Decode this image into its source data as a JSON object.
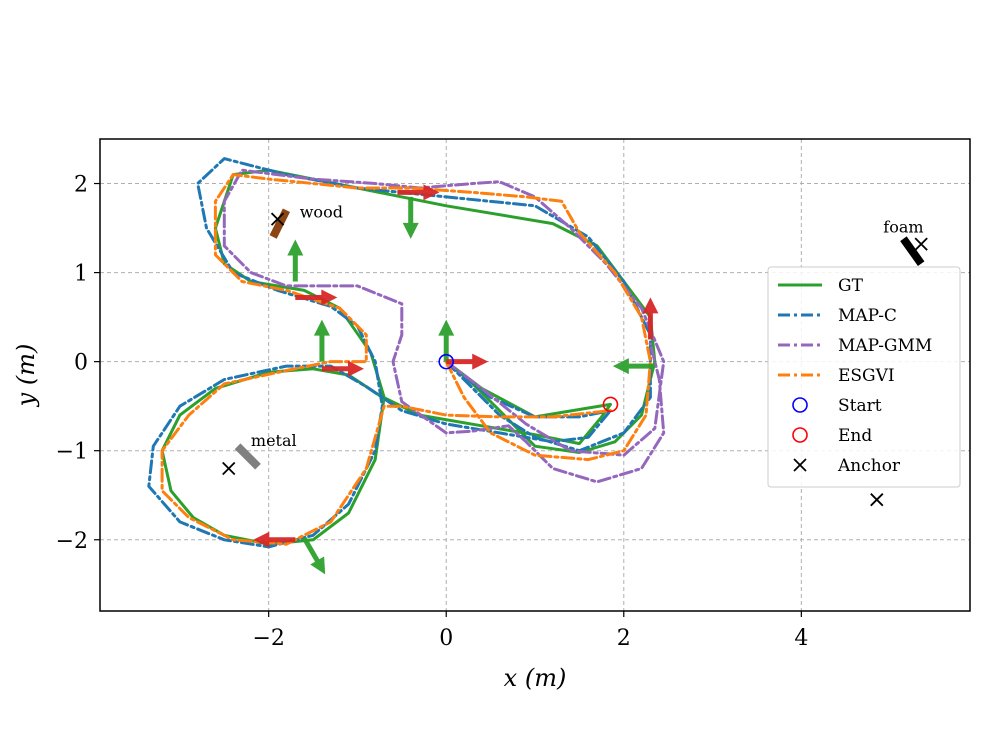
{
  "chart_data": {
    "type": "line",
    "title": "",
    "xlabel": "x (m)",
    "ylabel": "y (m)",
    "xlim": [
      -3.9,
      5.9
    ],
    "ylim": [
      -2.8,
      2.5
    ],
    "xticks": [
      -2,
      0,
      2,
      4
    ],
    "xtick_labels": [
      "−2",
      "0",
      "2",
      "4"
    ],
    "yticks": [
      -2,
      -1,
      0,
      1,
      2
    ],
    "ytick_labels": [
      "−2",
      "−1",
      "0",
      "1",
      "2"
    ],
    "grid": true,
    "legend_position": "right",
    "legend": [
      {
        "label": "GT",
        "color": "#2ca02c",
        "style": "solid"
      },
      {
        "label": "MAP-C",
        "color": "#1f77b4",
        "style": "dashdot"
      },
      {
        "label": "MAP-GMM",
        "color": "#9467bd",
        "style": "dashdot"
      },
      {
        "label": "ESGVI",
        "color": "#ff7f0e",
        "style": "dashdot"
      },
      {
        "label": "Start",
        "color": "#0000ff",
        "style": "circle"
      },
      {
        "label": "End",
        "color": "#ff0000",
        "style": "circle"
      },
      {
        "label": "Anchor",
        "color": "#000000",
        "style": "x"
      }
    ],
    "series": [
      {
        "name": "GT",
        "color": "#2ca02c",
        "dash": "",
        "points": [
          [
            0,
            0
          ],
          [
            0.4,
            -0.3
          ],
          [
            1.0,
            -0.62
          ],
          [
            1.6,
            -0.52
          ],
          [
            1.85,
            -0.48
          ],
          [
            1.75,
            -0.62
          ],
          [
            1.5,
            -0.92
          ],
          [
            1.0,
            -0.82
          ],
          [
            0.4,
            -0.72
          ],
          [
            -0.3,
            -0.6
          ],
          [
            -0.75,
            -0.38
          ],
          [
            -1.1,
            -0.15
          ],
          [
            -1.5,
            -0.08
          ],
          [
            -2.0,
            -0.12
          ],
          [
            -2.6,
            -0.3
          ],
          [
            -3.0,
            -0.6
          ],
          [
            -3.2,
            -1.0
          ],
          [
            -3.1,
            -1.45
          ],
          [
            -2.85,
            -1.75
          ],
          [
            -2.5,
            -1.95
          ],
          [
            -2.0,
            -2.05
          ],
          [
            -1.5,
            -2.0
          ],
          [
            -1.1,
            -1.7
          ],
          [
            -0.8,
            -1.1
          ],
          [
            -0.7,
            -0.4
          ],
          [
            -0.85,
            0.1
          ],
          [
            -1.2,
            0.6
          ],
          [
            -1.6,
            0.8
          ],
          [
            -2.2,
            0.9
          ],
          [
            -2.5,
            1.1
          ],
          [
            -2.6,
            1.5
          ],
          [
            -2.4,
            2.1
          ],
          [
            -2.0,
            2.15
          ],
          [
            -1.0,
            1.95
          ],
          [
            0,
            1.75
          ],
          [
            1.2,
            1.55
          ],
          [
            1.7,
            1.3
          ],
          [
            2.0,
            0.9
          ],
          [
            2.3,
            0.5
          ],
          [
            2.35,
            0
          ],
          [
            2.2,
            -0.6
          ],
          [
            1.9,
            -0.9
          ],
          [
            1.5,
            -1.02
          ],
          [
            1.0,
            -0.95
          ],
          [
            0.6,
            -0.55
          ],
          [
            0.3,
            -0.25
          ],
          [
            0,
            0
          ]
        ]
      },
      {
        "name": "MAP-C",
        "color": "#1f77b4",
        "dash": "12,4,3,4",
        "points": [
          [
            0,
            0
          ],
          [
            0.5,
            -0.4
          ],
          [
            1.0,
            -0.62
          ],
          [
            1.5,
            -0.62
          ],
          [
            1.85,
            -0.55
          ],
          [
            1.6,
            -0.85
          ],
          [
            1.2,
            -0.9
          ],
          [
            0.6,
            -0.8
          ],
          [
            0,
            -0.7
          ],
          [
            -0.5,
            -0.55
          ],
          [
            -0.9,
            -0.28
          ],
          [
            -1.3,
            -0.05
          ],
          [
            -1.8,
            -0.05
          ],
          [
            -2.5,
            -0.2
          ],
          [
            -3.0,
            -0.5
          ],
          [
            -3.3,
            -0.95
          ],
          [
            -3.35,
            -1.4
          ],
          [
            -3.0,
            -1.8
          ],
          [
            -2.5,
            -2.0
          ],
          [
            -2.0,
            -2.08
          ],
          [
            -1.5,
            -1.95
          ],
          [
            -1.1,
            -1.6
          ],
          [
            -0.8,
            -1.0
          ],
          [
            -0.72,
            -0.5
          ],
          [
            -0.8,
            0
          ],
          [
            -1.0,
            0.4
          ],
          [
            -1.3,
            0.62
          ],
          [
            -1.9,
            0.8
          ],
          [
            -2.4,
            1.0
          ],
          [
            -2.7,
            1.5
          ],
          [
            -2.8,
            2.0
          ],
          [
            -2.5,
            2.28
          ],
          [
            -1.8,
            2.1
          ],
          [
            -1.0,
            1.95
          ],
          [
            0,
            1.85
          ],
          [
            1.0,
            1.75
          ],
          [
            1.6,
            1.4
          ],
          [
            2.0,
            0.9
          ],
          [
            2.3,
            0.3
          ],
          [
            2.3,
            -0.4
          ],
          [
            2.0,
            -0.8
          ],
          [
            1.5,
            -1.0
          ],
          [
            1.0,
            -0.85
          ],
          [
            0.6,
            -0.6
          ],
          [
            0,
            0
          ]
        ]
      },
      {
        "name": "MAP-GMM",
        "color": "#9467bd",
        "dash": "12,4,3,4",
        "points": [
          [
            0,
            0
          ],
          [
            0.4,
            -0.3
          ],
          [
            0.9,
            -0.7
          ],
          [
            1.4,
            -1.0
          ],
          [
            2.0,
            -1.05
          ],
          [
            2.35,
            -0.75
          ],
          [
            2.45,
            0
          ],
          [
            2.2,
            0.6
          ],
          [
            1.8,
            1.1
          ],
          [
            1.4,
            1.5
          ],
          [
            1.0,
            1.85
          ],
          [
            0.6,
            2.02
          ],
          [
            0.3,
            2.0
          ],
          [
            -0.3,
            1.95
          ],
          [
            -0.8,
            2.0
          ],
          [
            -1.5,
            2.05
          ],
          [
            -2.3,
            2.15
          ],
          [
            -2.5,
            1.8
          ],
          [
            -2.5,
            1.3
          ],
          [
            -2.2,
            1.0
          ],
          [
            -1.8,
            0.85
          ],
          [
            -1.0,
            0.85
          ],
          [
            -0.5,
            0.65
          ],
          [
            -0.5,
            0.3
          ],
          [
            -0.6,
            0
          ],
          [
            -0.5,
            -0.45
          ],
          [
            0,
            -0.8
          ],
          [
            0.3,
            -0.78
          ],
          [
            0.7,
            -0.72
          ],
          [
            0.9,
            -0.9
          ],
          [
            1.2,
            -1.2
          ],
          [
            1.7,
            -1.35
          ],
          [
            2.2,
            -1.2
          ],
          [
            2.45,
            -0.8
          ],
          [
            2.4,
            -0.2
          ],
          [
            2.3,
            0.2
          ]
        ]
      },
      {
        "name": "ESGVI",
        "color": "#ff7f0e",
        "dash": "12,4,3,4",
        "points": [
          [
            0,
            0
          ],
          [
            0.2,
            -0.4
          ],
          [
            0.5,
            -0.8
          ],
          [
            1.0,
            -1.05
          ],
          [
            1.6,
            -1.1
          ],
          [
            2.0,
            -1.0
          ],
          [
            2.25,
            -0.6
          ],
          [
            2.3,
            0
          ],
          [
            2.2,
            0.5
          ],
          [
            1.9,
            1.0
          ],
          [
            1.5,
            1.45
          ],
          [
            1.3,
            1.8
          ],
          [
            0.9,
            1.85
          ],
          [
            0.3,
            1.9
          ],
          [
            -0.4,
            1.95
          ],
          [
            -1.0,
            1.95
          ],
          [
            -1.5,
            2.0
          ],
          [
            -2.0,
            2.05
          ],
          [
            -2.4,
            2.1
          ],
          [
            -2.6,
            1.8
          ],
          [
            -2.6,
            1.2
          ],
          [
            -2.3,
            0.9
          ],
          [
            -1.8,
            0.8
          ],
          [
            -1.2,
            0.6
          ],
          [
            -0.9,
            0.3
          ],
          [
            -0.9,
            0
          ],
          [
            -1.3,
            0
          ],
          [
            -1.8,
            -0.1
          ],
          [
            -2.5,
            -0.25
          ],
          [
            -2.9,
            -0.6
          ],
          [
            -3.2,
            -1.0
          ],
          [
            -3.2,
            -1.45
          ],
          [
            -2.9,
            -1.75
          ],
          [
            -2.4,
            -2.0
          ],
          [
            -1.8,
            -2.05
          ],
          [
            -1.3,
            -1.8
          ],
          [
            -0.9,
            -1.2
          ],
          [
            -0.7,
            -0.5
          ],
          [
            -0.5,
            -0.5
          ],
          [
            0,
            -0.6
          ],
          [
            0.6,
            -0.62
          ],
          [
            1.2,
            -0.62
          ],
          [
            1.85,
            -0.55
          ]
        ]
      }
    ],
    "markers": {
      "start": {
        "x": 0,
        "y": 0,
        "label": "Start"
      },
      "end": {
        "x": 1.85,
        "y": -0.48,
        "label": "End"
      },
      "anchors": [
        [
          -1.9,
          1.6
        ],
        [
          5.35,
          1.32
        ],
        [
          -2.45,
          -1.2
        ],
        [
          4.85,
          -1.55
        ]
      ]
    },
    "arrows": [
      {
        "x": 0,
        "y": 0,
        "angle": 90,
        "color": "#2ca02c"
      },
      {
        "x": 0,
        "y": 0,
        "angle": 0,
        "color": "#d62728"
      },
      {
        "x": -0.4,
        "y": 1.85,
        "angle": -90,
        "color": "#2ca02c"
      },
      {
        "x": -0.55,
        "y": 1.9,
        "angle": 0,
        "color": "#d62728"
      },
      {
        "x": -1.7,
        "y": 0.9,
        "angle": 90,
        "color": "#2ca02c"
      },
      {
        "x": -1.7,
        "y": 0.72,
        "angle": 0,
        "color": "#d62728"
      },
      {
        "x": -1.4,
        "y": 0,
        "angle": 90,
        "color": "#2ca02c"
      },
      {
        "x": -1.4,
        "y": -0.08,
        "angle": 0,
        "color": "#d62728"
      },
      {
        "x": 2.35,
        "y": -0.05,
        "angle": 180,
        "color": "#2ca02c"
      },
      {
        "x": 2.3,
        "y": 0.25,
        "angle": 90,
        "color": "#d62728"
      },
      {
        "x": -1.6,
        "y": -1.98,
        "angle": -60,
        "color": "#2ca02c"
      },
      {
        "x": -1.7,
        "y": -2.0,
        "angle": 180,
        "color": "#d62728"
      }
    ],
    "annotations": [
      {
        "text": "wood",
        "x": -1.65,
        "y": 1.62,
        "material": "wood",
        "color": "#8b4513",
        "x1": -1.95,
        "y1": 1.4,
        "x2": -1.8,
        "y2": 1.7
      },
      {
        "text": "foam",
        "x": 5.15,
        "y": 1.45,
        "material": "foam",
        "color": "#000000",
        "x1": 5.15,
        "y1": 1.38,
        "x2": 5.35,
        "y2": 1.1
      },
      {
        "text": "metal",
        "x": -2.2,
        "y": -0.95,
        "material": "metal",
        "color": "#808080",
        "x1": -2.35,
        "y1": -0.95,
        "x2": -2.12,
        "y2": -1.18
      }
    ]
  }
}
